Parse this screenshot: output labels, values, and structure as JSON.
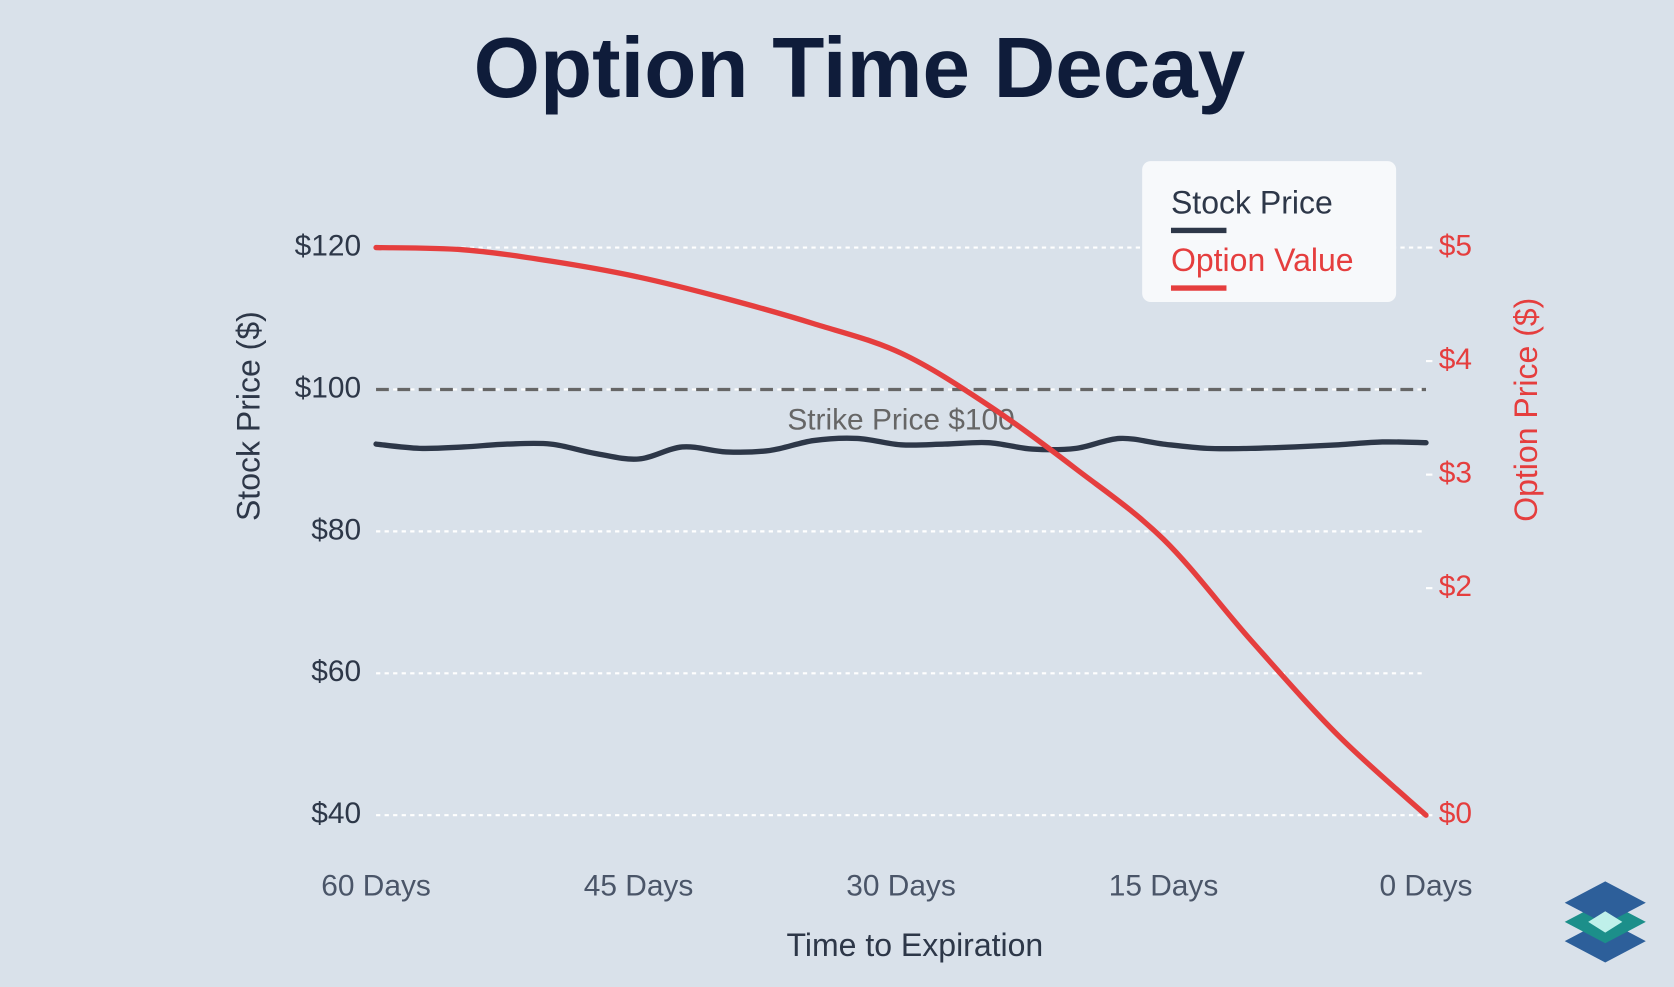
{
  "chart_data": {
    "type": "line",
    "title": "Option Time Decay",
    "x_label": "Time to Expiration",
    "y_label": "Stock Price ($)",
    "y2_label": "Option Price ($)",
    "xlim": [
      60,
      0
    ],
    "xticks": [
      {
        "value": 60,
        "label": "60 Days"
      },
      {
        "value": 45,
        "label": "45 Days"
      },
      {
        "value": 30,
        "label": "30 Days"
      },
      {
        "value": 15,
        "label": "15 Days"
      },
      {
        "value": 0,
        "label": "0 Days"
      }
    ],
    "ylim": [
      40,
      120
    ],
    "yticks": [
      {
        "value": 40,
        "label": "$40"
      },
      {
        "value": 60,
        "label": "$60"
      },
      {
        "value": 80,
        "label": "$80"
      },
      {
        "value": 100,
        "label": "$100"
      },
      {
        "value": 120,
        "label": "$120"
      }
    ],
    "y2lim": [
      0,
      5
    ],
    "y2ticks": [
      {
        "value": 0,
        "label": "$0"
      },
      {
        "value": 2,
        "label": "$2"
      },
      {
        "value": 3,
        "label": "$3"
      },
      {
        "value": 4,
        "label": "$4"
      },
      {
        "value": 5,
        "label": "$5"
      }
    ],
    "grid": true,
    "legend": "upper right",
    "reference_line": {
      "value": 100,
      "label": "Strike Price $100",
      "color": "#666666"
    },
    "series": [
      {
        "name": "Stock Price",
        "color": "#2d3748",
        "x": [
          60,
          57.5,
          55,
          52.5,
          50,
          47.5,
          45,
          42.5,
          40,
          37.5,
          35,
          32.5,
          30,
          27.5,
          25,
          22.5,
          20,
          17.5,
          15,
          12.5,
          10,
          7.5,
          5,
          2.5,
          0
        ],
        "values": [
          92.3,
          91.7,
          91.9,
          92.3,
          92.3,
          91.0,
          90.2,
          91.9,
          91.2,
          91.4,
          92.8,
          93.1,
          92.2,
          92.3,
          92.5,
          91.6,
          91.7,
          93.1,
          92.3,
          91.7,
          91.7,
          91.9,
          92.2,
          92.6,
          92.5
        ]
      },
      {
        "name": "Option Value",
        "color": "#e53e3e",
        "axis": "y2",
        "x": [
          60,
          55,
          50,
          45,
          40,
          35,
          30,
          25,
          20,
          15,
          10,
          5,
          0
        ],
        "values": [
          5.0,
          4.98,
          4.88,
          4.74,
          4.55,
          4.33,
          4.07,
          3.61,
          3.05,
          2.43,
          1.54,
          0.7,
          0
        ]
      }
    ]
  }
}
